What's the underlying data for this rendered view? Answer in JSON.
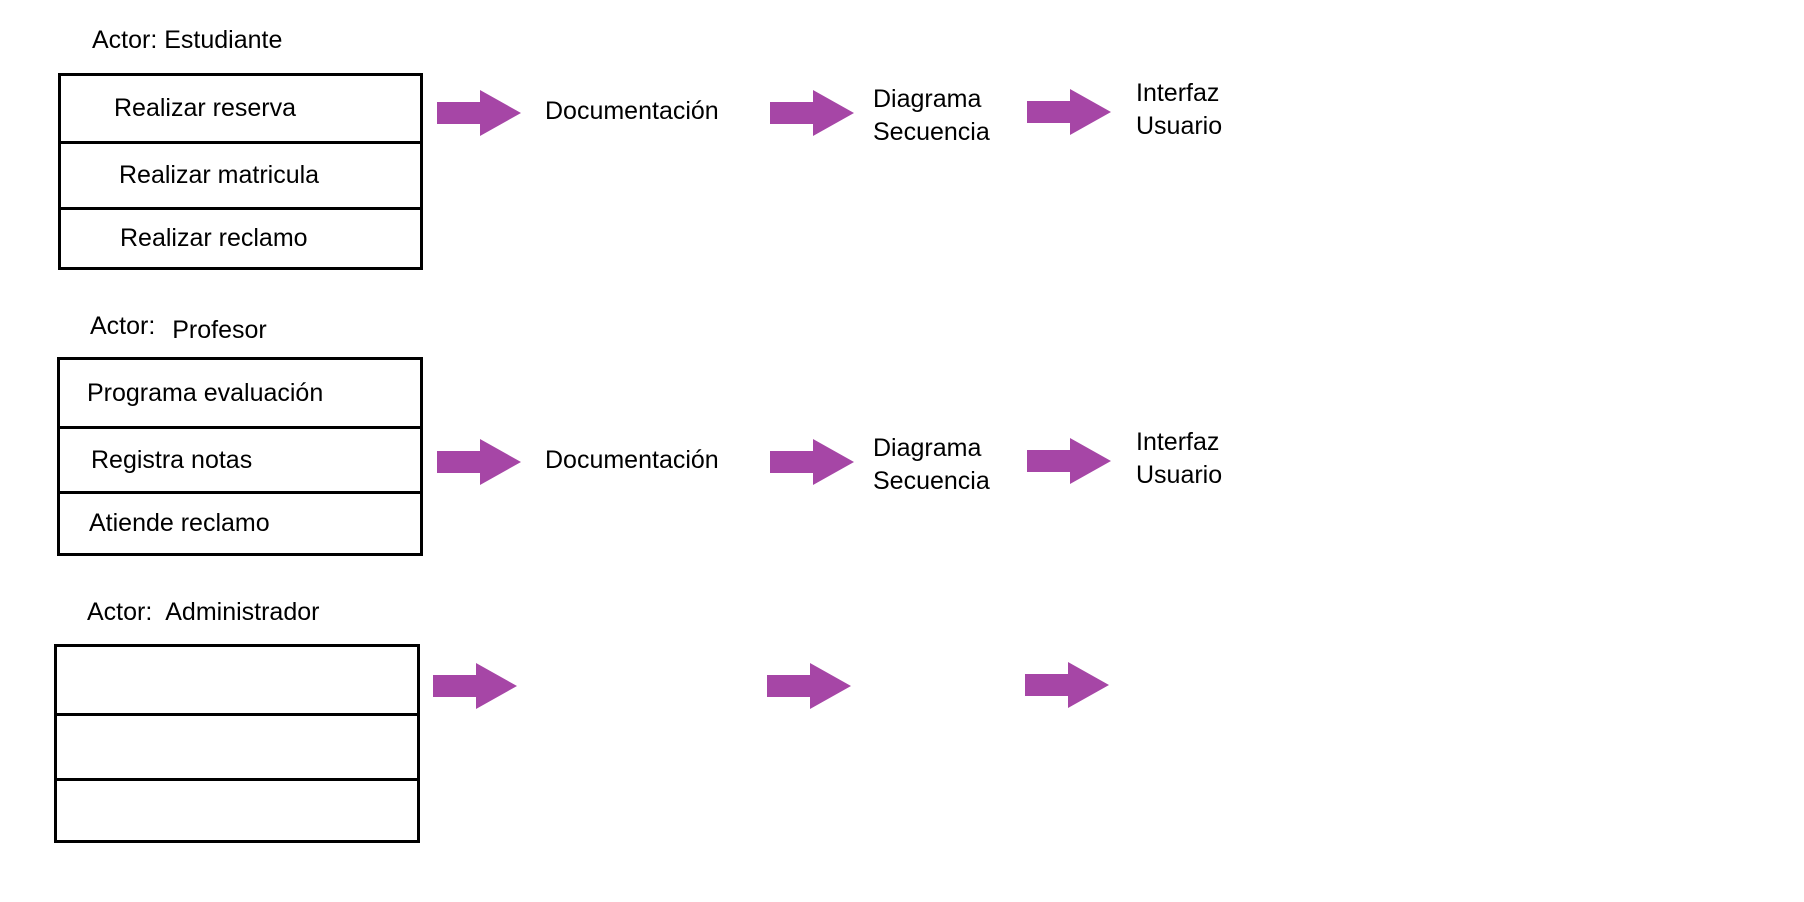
{
  "colors": {
    "arrow": "#A646A6",
    "line": "#000000"
  },
  "sections": [
    {
      "actor_prefix": "Actor:",
      "actor_name": "Estudiante",
      "use_cases": [
        "Realizar reserva",
        "Realizar matricula",
        "Realizar reclamo"
      ],
      "steps": [
        "Documentación",
        "Diagrama\nSecuencia",
        "Interfaz\nUsuario"
      ]
    },
    {
      "actor_prefix": "Actor:",
      "actor_name": "Profesor",
      "use_cases": [
        "Programa evaluación",
        "Registra notas",
        "Atiende reclamo"
      ],
      "steps": [
        "Documentación",
        "Diagrama\nSecuencia",
        "Interfaz\nUsuario"
      ]
    },
    {
      "actor_prefix": "Actor:",
      "actor_name": "Administrador",
      "use_cases": [
        "",
        "",
        ""
      ],
      "steps": [
        "",
        "",
        ""
      ]
    }
  ]
}
